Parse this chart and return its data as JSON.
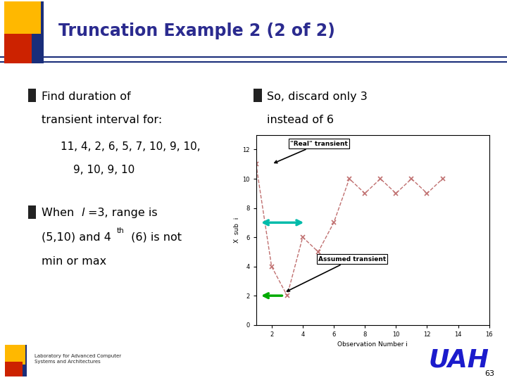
{
  "title": "Truncation Example 2 (2 of 2)",
  "title_color": "#2B2B8F",
  "slide_bg": "#FFFFFF",
  "header_bg": "#E8E8EE",
  "bullet1_line1": "Find duration of",
  "bullet1_line2": "transient interval for:",
  "data_sequence": "11, 4, 2, 6, 5, 7, 10, 9, 10,",
  "data_sequence2": "9, 10, 9, 10",
  "bullet3_line1": "So, discard only 3",
  "bullet3_line2": "instead of 6",
  "obs_data": [
    11,
    4,
    2,
    6,
    5,
    7,
    10,
    9,
    10,
    9,
    10,
    9,
    10
  ],
  "data_color": "#C07070",
  "xlabel": "Observation Number i",
  "ylabel": "X  sub  i",
  "plot_ylim": [
    0,
    13
  ],
  "plot_xlim": [
    1,
    16
  ],
  "footer_text": "Laboratory for Advanced Computer\nSystems and Architectures",
  "page_num": "63",
  "uah_color": "#1B1BCC",
  "sq_yellow": "#FFB800",
  "sq_red": "#CC2200",
  "sq_blue": "#1A2E7A",
  "line_blue": "#1A2E7A"
}
